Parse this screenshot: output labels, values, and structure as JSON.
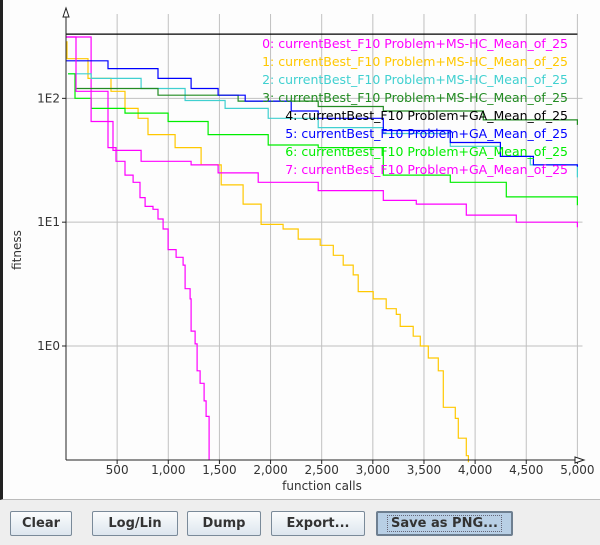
{
  "chart_data": {
    "type": "line",
    "xlabel": "function calls",
    "ylabel": "fitness",
    "x_scale": "linear",
    "y_scale": "log",
    "xlim": [
      0,
      5050
    ],
    "ylim": [
      0.12,
      480
    ],
    "grid": true,
    "legend_placement": "top-right",
    "x_ticks": [
      500,
      1000,
      1500,
      2000,
      2500,
      3000,
      3500,
      4000,
      4500,
      5000
    ],
    "x_tick_labels": [
      "500",
      "1,000",
      "1,500",
      "2,000",
      "2,500",
      "3,000",
      "3,500",
      "4,000",
      "4,500",
      "5,000"
    ],
    "y_ticks": [
      100,
      10,
      1
    ],
    "y_tick_labels": [
      "1E2",
      "1E1",
      "1E0"
    ],
    "series": [
      {
        "name": "0: currentBest_F10 Problem+MS-HC_Mean_of_25",
        "color": "#ff00ff",
        "points": [
          [
            0,
            313
          ],
          [
            245,
            114
          ],
          [
            411,
            40
          ],
          [
            489,
            31
          ],
          [
            577,
            24
          ],
          [
            656,
            21
          ],
          [
            724,
            15.8
          ],
          [
            773,
            13.4
          ],
          [
            851,
            12.7
          ],
          [
            900,
            10.6
          ],
          [
            949,
            8.8
          ],
          [
            998,
            6.0
          ],
          [
            1076,
            5.2
          ],
          [
            1145,
            4.5
          ],
          [
            1164,
            2.9
          ],
          [
            1213,
            2.4
          ],
          [
            1223,
            1.32
          ],
          [
            1262,
            1.04
          ],
          [
            1282,
            0.63
          ],
          [
            1311,
            0.5
          ],
          [
            1350,
            0.36
          ],
          [
            1370,
            0.27
          ],
          [
            1399,
            0.26
          ],
          [
            1399,
            0.12
          ]
        ]
      },
      {
        "name": "1: currentBest_F10 Problem+MS-HC_Mean_of_25",
        "color": "#ffc800",
        "points": [
          [
            0,
            286
          ],
          [
            10,
            209
          ],
          [
            215,
            145
          ],
          [
            440,
            114
          ],
          [
            577,
            83
          ],
          [
            705,
            69
          ],
          [
            802,
            51
          ],
          [
            1067,
            40
          ],
          [
            1321,
            29
          ],
          [
            1517,
            20
          ],
          [
            1732,
            14
          ],
          [
            1908,
            9.6
          ],
          [
            2123,
            8.8
          ],
          [
            2270,
            7.3
          ],
          [
            2485,
            6.5
          ],
          [
            2613,
            5.4
          ],
          [
            2710,
            4.5
          ],
          [
            2808,
            3.75
          ],
          [
            2857,
            2.75
          ],
          [
            3004,
            2.4
          ],
          [
            3131,
            2.0
          ],
          [
            3229,
            1.8
          ],
          [
            3268,
            1.44
          ],
          [
            3395,
            1.2
          ],
          [
            3464,
            1.0
          ],
          [
            3542,
            0.8
          ],
          [
            3640,
            0.63
          ],
          [
            3689,
            0.32
          ],
          [
            3806,
            0.26
          ],
          [
            3836,
            0.18
          ],
          [
            3914,
            0.13
          ],
          [
            3934,
            0.115
          ]
        ]
      },
      {
        "name": "2: currentBest_F10 Problem+MS-HC_Mean_of_25",
        "color": "#40d0d0",
        "points": [
          [
            20,
            158
          ],
          [
            245,
            145
          ],
          [
            734,
            120
          ],
          [
            1164,
            96
          ],
          [
            1556,
            83
          ],
          [
            1977,
            69
          ],
          [
            2466,
            58
          ],
          [
            3102,
            52
          ],
          [
            3757,
            41
          ],
          [
            4247,
            34
          ],
          [
            4540,
            29
          ],
          [
            5000,
            23
          ]
        ]
      },
      {
        "name": "3: currentBest_F10 Problem+MS-HC_Mean_of_25",
        "color": "#228b22",
        "points": [
          [
            98,
            120
          ],
          [
            900,
            106
          ],
          [
            1683,
            95
          ],
          [
            2466,
            86
          ],
          [
            3102,
            79
          ],
          [
            4080,
            67
          ],
          [
            5000,
            61
          ]
        ]
      },
      {
        "name": "4: currentBest_F10 Problem+GA_Mean_of_25",
        "color": "#000000",
        "points": [
          [
            0,
            330
          ],
          [
            5000,
            330
          ]
        ]
      },
      {
        "name": "5: currentBest_F10 Problem+GA_Mean_of_25",
        "color": "#0000ff",
        "points": [
          [
            0,
            201
          ],
          [
            411,
            174
          ],
          [
            900,
            145
          ],
          [
            1223,
            120
          ],
          [
            1487,
            106
          ],
          [
            1752,
            95
          ],
          [
            2202,
            79
          ],
          [
            2466,
            69
          ],
          [
            3102,
            55
          ],
          [
            3757,
            44
          ],
          [
            4247,
            34
          ],
          [
            4570,
            29
          ],
          [
            5000,
            28
          ]
        ]
      },
      {
        "name": "6: currentBest_F10 Problem+GA_Mean_of_25",
        "color": "#00ee00",
        "points": [
          [
            20,
            158
          ],
          [
            88,
            100
          ],
          [
            245,
            83
          ],
          [
            577,
            76
          ],
          [
            998,
            65
          ],
          [
            1389,
            51
          ],
          [
            1977,
            42
          ],
          [
            2466,
            40
          ],
          [
            3102,
            24
          ],
          [
            3757,
            21
          ],
          [
            4305,
            16
          ],
          [
            5000,
            13.7
          ]
        ]
      },
      {
        "name": "7: currentBest_F10 Problem+GA_Mean_of_25",
        "color": "#ff00ff",
        "points": [
          [
            0,
            313
          ],
          [
            98,
            114
          ],
          [
            245,
            65
          ],
          [
            460,
            38
          ],
          [
            734,
            31
          ],
          [
            1223,
            29
          ],
          [
            1487,
            25
          ],
          [
            1879,
            21
          ],
          [
            2466,
            18
          ],
          [
            3102,
            15
          ],
          [
            3425,
            14
          ],
          [
            3914,
            11.4
          ],
          [
            4403,
            10
          ],
          [
            5000,
            9.1
          ]
        ]
      }
    ]
  },
  "buttons": {
    "clear": "Clear",
    "log_lin": "Log/Lin",
    "dump": "Dump",
    "export": "Export...",
    "save_png": "Save as PNG..."
  }
}
